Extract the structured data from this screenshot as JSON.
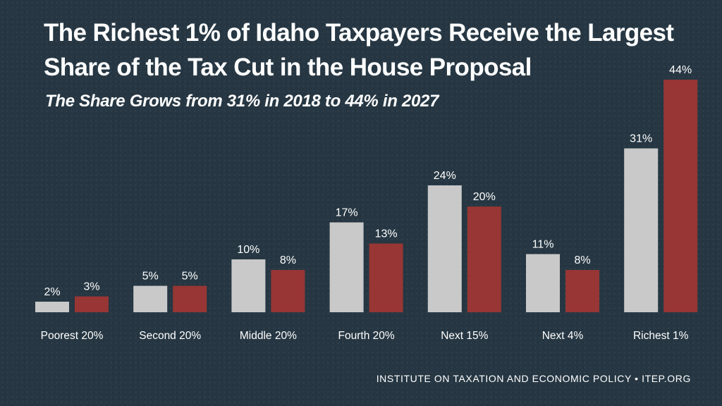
{
  "title": "The Richest 1% of Idaho Taxpayers Receive the Largest Share of the Tax Cut in the House Proposal",
  "subtitle": "The Share Grows from 31% in 2018 to 44% in 2027",
  "footer": "INSTITUTE ON TAXATION AND ECONOMIC POLICY • ITEP.ORG",
  "colors": {
    "background": "#263743",
    "series_2018": "#c9c9c9",
    "series_2027": "#973634",
    "text": "#ffffff"
  },
  "chart_data": {
    "type": "bar",
    "categories": [
      "Poorest 20%",
      "Second 20%",
      "Middle 20%",
      "Fourth 20%",
      "Next 15%",
      "Next 4%",
      "Richest 1%"
    ],
    "series": [
      {
        "values": [
          2,
          5,
          10,
          17,
          24,
          11,
          31
        ],
        "labels": [
          "2%",
          "5%",
          "10%",
          "17%",
          "24%",
          "11%",
          "31%"
        ]
      },
      {
        "values": [
          3,
          5,
          8,
          13,
          20,
          8,
          44
        ],
        "labels": [
          "3%",
          "5%",
          "8%",
          "13%",
          "20%",
          "8%",
          "44%"
        ]
      }
    ],
    "ylim": [
      0,
      44
    ],
    "grid": false,
    "legend": "none"
  }
}
